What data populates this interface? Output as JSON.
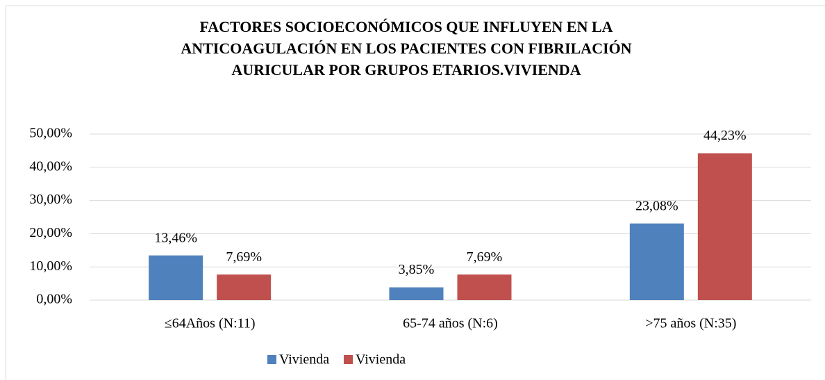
{
  "chart_data": {
    "type": "bar",
    "title": [
      "FACTORES SOCIOECONÓMICOS QUE INFLUYEN EN LA",
      "ANTICOAGULACIÓN EN LOS PACIENTES CON FIBRILACIÓN",
      "AURICULAR POR GRUPOS ETARIOS.VIVIENDA"
    ],
    "categories": [
      "≤64Años (N:11)",
      "65-74 años (N:6)",
      ">75 años (N:35)"
    ],
    "series": [
      {
        "name": "Vivienda",
        "color": "#4f81bd",
        "values": [
          13.46,
          3.85,
          23.08
        ],
        "value_labels": [
          "13,46%",
          "3,85%",
          "23,08%"
        ]
      },
      {
        "name": "Vivienda",
        "color": "#c0504d",
        "values": [
          7.69,
          7.69,
          44.23
        ],
        "value_labels": [
          "7,69%",
          "7,69%",
          "44,23%"
        ]
      }
    ],
    "ylim": [
      0,
      50
    ],
    "yticks": [
      {
        "value": 0,
        "label": "0,00%"
      },
      {
        "value": 10,
        "label": "10,00%"
      },
      {
        "value": 20,
        "label": "20,00%"
      },
      {
        "value": 30,
        "label": "30,00%"
      },
      {
        "value": 40,
        "label": "40,00%"
      },
      {
        "value": 50,
        "label": "50,00%"
      }
    ],
    "grid": true,
    "legend": "bottom"
  }
}
